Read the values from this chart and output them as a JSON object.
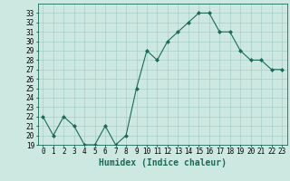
{
  "x": [
    0,
    1,
    2,
    3,
    4,
    5,
    6,
    7,
    8,
    9,
    10,
    11,
    12,
    13,
    14,
    15,
    16,
    17,
    18,
    19,
    20,
    21,
    22,
    23
  ],
  "y": [
    22,
    20,
    22,
    21,
    19,
    19,
    21,
    19,
    20,
    25,
    29,
    28,
    30,
    31,
    32,
    33,
    33,
    31,
    31,
    29,
    28,
    28,
    27,
    27
  ],
  "line_color": "#1a6b5a",
  "marker": "D",
  "marker_size": 2,
  "bg_color": "#cce8e0",
  "grid_color": "#9ec8bf",
  "xlabel": "Humidex (Indice chaleur)",
  "xlim": [
    -0.5,
    23.5
  ],
  "ylim": [
    19,
    34
  ],
  "yticks": [
    19,
    20,
    21,
    22,
    23,
    24,
    25,
    26,
    27,
    28,
    29,
    30,
    31,
    32,
    33
  ],
  "xticks": [
    0,
    1,
    2,
    3,
    4,
    5,
    6,
    7,
    8,
    9,
    10,
    11,
    12,
    13,
    14,
    15,
    16,
    17,
    18,
    19,
    20,
    21,
    22,
    23
  ],
  "tick_fontsize": 5.5,
  "xlabel_fontsize": 7
}
